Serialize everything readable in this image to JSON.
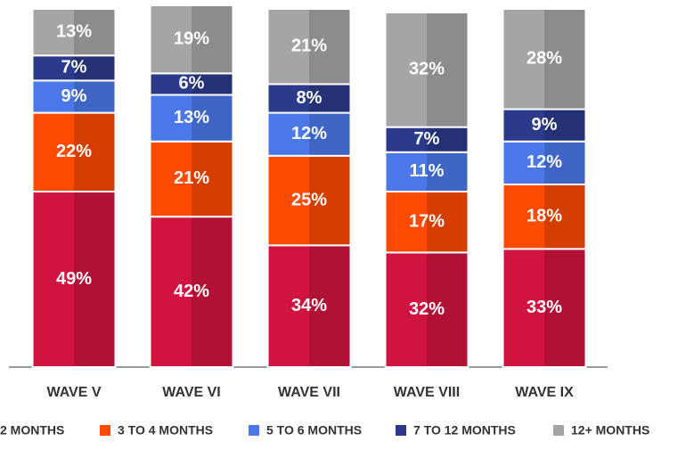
{
  "chart_data": {
    "type": "stacked_bar",
    "categories": [
      "WAVE V",
      "WAVE VI",
      "WAVE VII",
      "WAVE VIII",
      "WAVE IX"
    ],
    "ylim": [
      0,
      100
    ],
    "series": [
      {
        "name": "2 MONTHS",
        "color": "#d0143f",
        "values": [
          49,
          42,
          34,
          32,
          33
        ],
        "value_labels": [
          "49%",
          "42%",
          "34%",
          "32%",
          "33%"
        ]
      },
      {
        "name": "3 TO 4 MONTHS",
        "color": "#fa4b00",
        "values": [
          22,
          21,
          25,
          17,
          18
        ],
        "value_labels": [
          "22%",
          "21%",
          "25%",
          "17%",
          "18%"
        ]
      },
      {
        "name": "5 TO 6 MONTHS",
        "color": "#4a78e8",
        "values": [
          9,
          13,
          12,
          11,
          12
        ],
        "value_labels": [
          "9%",
          "13%",
          "12%",
          "11%",
          "12%"
        ]
      },
      {
        "name": "7 TO 12 MONTHS",
        "color": "#2b3a8a",
        "values": [
          7,
          6,
          8,
          7,
          9
        ],
        "value_labels": [
          "7%",
          "6%",
          "8%",
          "7%",
          "9%"
        ]
      },
      {
        "name": "12+ MONTHS",
        "color": "#a5a5a8",
        "values": [
          13,
          19,
          21,
          32,
          28
        ],
        "value_labels": [
          "13%",
          "19%",
          "21%",
          "32%",
          "28%"
        ]
      }
    ]
  }
}
